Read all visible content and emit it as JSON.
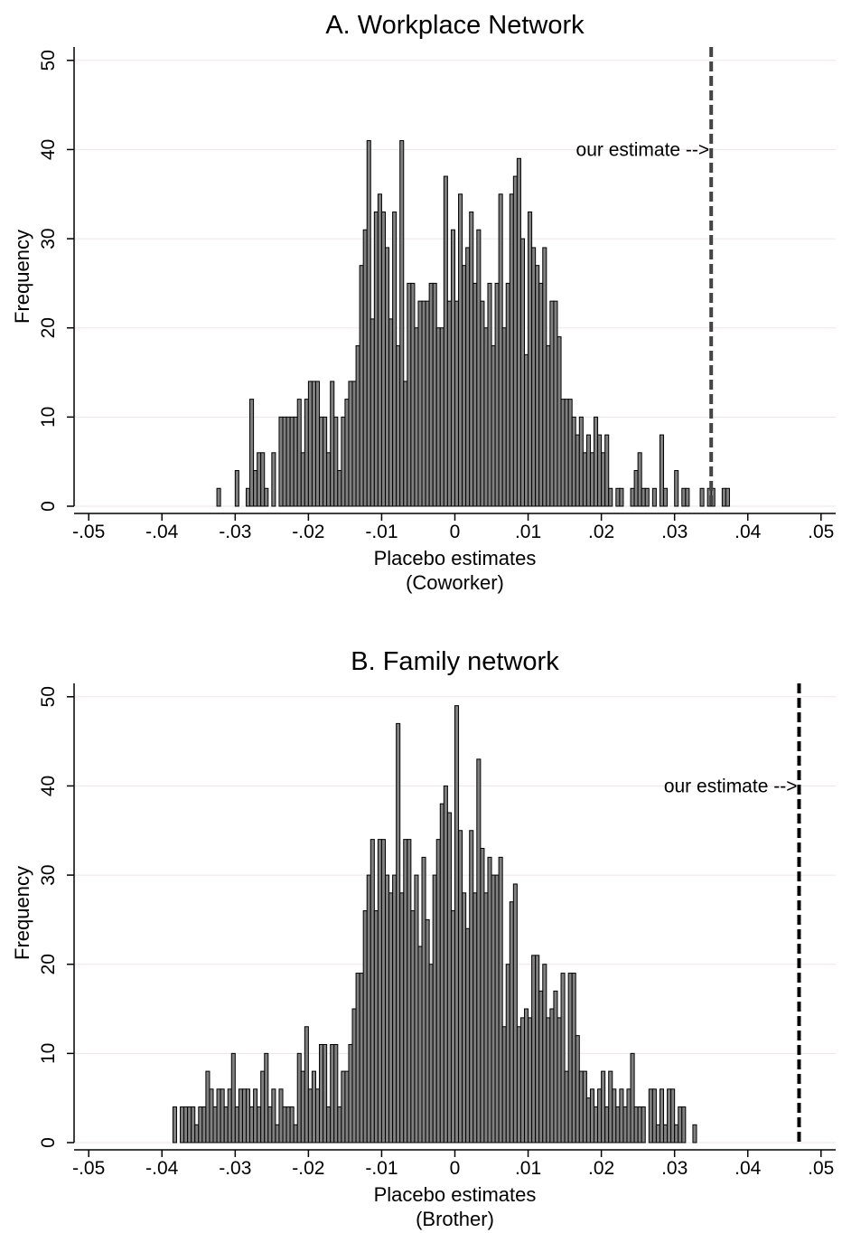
{
  "chart_data": [
    {
      "type": "histogram",
      "title": "A. Workplace Network",
      "x_label": "Placebo estimates",
      "x_sublabel": "(Coworker)",
      "y_label": "Frequency",
      "xlim": [
        -0.052,
        0.052
      ],
      "ylim": [
        0,
        51.5
      ],
      "xticks": [
        {
          "value": -0.05,
          "label": "-.05"
        },
        {
          "value": -0.04,
          "label": "-.04"
        },
        {
          "value": -0.03,
          "label": "-.03"
        },
        {
          "value": -0.02,
          "label": "-.02"
        },
        {
          "value": -0.01,
          "label": "-.01"
        },
        0,
        {
          "value": 0.01,
          "label": ".01"
        },
        {
          "value": 0.02,
          "label": ".02"
        },
        {
          "value": 0.03,
          "label": ".03"
        },
        {
          "value": 0.04,
          "label": ".04"
        },
        {
          "value": 0.05,
          "label": ".05"
        }
      ],
      "yticks": [
        0,
        10,
        20,
        30,
        40,
        50
      ],
      "grid": true,
      "color": "#808080",
      "edgecolor": "#000000",
      "bins": [
        -0.033,
        -0.0325,
        -0.032,
        -0.0315,
        -0.031,
        -0.0305,
        -0.03,
        -0.0295,
        -0.029,
        -0.0285,
        -0.028,
        -0.0275,
        -0.027,
        -0.0265,
        -0.026,
        -0.0255,
        -0.025,
        -0.0245,
        -0.024,
        -0.0235,
        -0.023,
        -0.0225,
        -0.022,
        -0.0215,
        -0.021,
        -0.0205,
        -0.02,
        -0.0195,
        -0.019,
        -0.0185,
        -0.018,
        -0.0175,
        -0.017,
        -0.0165,
        -0.016,
        -0.0155,
        -0.015,
        -0.0145,
        -0.014,
        -0.0135,
        -0.013,
        -0.0125,
        -0.012,
        -0.0115,
        -0.011,
        -0.0105,
        -0.01,
        -0.0095,
        -0.009,
        -0.0085,
        -0.008,
        -0.0075,
        -0.007,
        -0.0065,
        -0.006,
        -0.0055,
        -0.005,
        -0.0045,
        -0.004,
        -0.0035,
        -0.003,
        -0.0025,
        -0.002,
        -0.0015,
        -0.001,
        -0.0005,
        0,
        0.0005,
        0.001,
        0.0015,
        0.002,
        0.0025,
        0.003,
        0.0035,
        0.004,
        0.0045,
        0.005,
        0.0055,
        0.006,
        0.0065,
        0.007,
        0.0075,
        0.008,
        0.0085,
        0.009,
        0.0095,
        0.01,
        0.0105,
        0.011,
        0.0115,
        0.012,
        0.0125,
        0.013,
        0.0135,
        0.014,
        0.0145,
        0.015,
        0.0155,
        0.016,
        0.0165,
        0.017,
        0.0175,
        0.018,
        0.0185,
        0.019,
        0.0195,
        0.02,
        0.0205,
        0.021,
        0.0215,
        0.022,
        0.0225,
        0.023,
        0.0235,
        0.024,
        0.0245,
        0.025,
        0.0255,
        0.026,
        0.0265,
        0.027,
        0.0275,
        0.028,
        0.0285,
        0.029,
        0.0295,
        0.03,
        0.0305,
        0.031,
        0.0315,
        0.032,
        0.0325,
        0.033,
        0.0335,
        0.034,
        0.0345,
        0.035,
        0.0355,
        0.036,
        0.0365,
        0.037,
        0.0375,
        0.038
      ],
      "counts": [
        0,
        2,
        0,
        0,
        0,
        0,
        4,
        0,
        0,
        2,
        12,
        4,
        6,
        6,
        2,
        0,
        6,
        0,
        10,
        10,
        10,
        10,
        10,
        12,
        6,
        12,
        14,
        14,
        14,
        10,
        10,
        6,
        14,
        10,
        4,
        10,
        12,
        14,
        14,
        18,
        27,
        31,
        41,
        21,
        33,
        35,
        33,
        29,
        21,
        33,
        18,
        41,
        14,
        25,
        25,
        20,
        23,
        23,
        23,
        25,
        25,
        20,
        20,
        37,
        23,
        31,
        23,
        35,
        27,
        29,
        33,
        25,
        31,
        23,
        20,
        25,
        18,
        25,
        35,
        20,
        25,
        35,
        37,
        39,
        30,
        17,
        33,
        29,
        27,
        25,
        29,
        18,
        23,
        23,
        19,
        12,
        12,
        12,
        10,
        8,
        10,
        6,
        8,
        6,
        10,
        8,
        6,
        8,
        2,
        0,
        2,
        2,
        0,
        0,
        2,
        4,
        6,
        2,
        2,
        0,
        2,
        0,
        8,
        2,
        0,
        0,
        4,
        0,
        2,
        2,
        0,
        0,
        0,
        2,
        0,
        2,
        2,
        0,
        0,
        2,
        2,
        0
      ],
      "reference_line": {
        "x": 0.035,
        "color": "#444444"
      },
      "annotation": {
        "text": "our estimate -->",
        "x": 0.035,
        "y": 40
      }
    },
    {
      "type": "histogram",
      "title": "B. Family network",
      "x_label": "Placebo estimates",
      "x_sublabel": "(Brother)",
      "y_label": "Frequency",
      "xlim": [
        -0.052,
        0.052
      ],
      "ylim": [
        0,
        51.5
      ],
      "xticks": [
        {
          "value": -0.05,
          "label": "-.05"
        },
        {
          "value": -0.04,
          "label": "-.04"
        },
        {
          "value": -0.03,
          "label": "-.03"
        },
        {
          "value": -0.02,
          "label": "-.02"
        },
        {
          "value": -0.01,
          "label": "-.01"
        },
        0,
        {
          "value": 0.01,
          "label": ".01"
        },
        {
          "value": 0.02,
          "label": ".02"
        },
        {
          "value": 0.03,
          "label": ".03"
        },
        {
          "value": 0.04,
          "label": ".04"
        },
        {
          "value": 0.05,
          "label": ".05"
        }
      ],
      "yticks": [
        0,
        10,
        20,
        30,
        40,
        50
      ],
      "grid": true,
      "color": "#808080",
      "edgecolor": "#000000",
      "bins": [
        -0.039,
        -0.0385,
        -0.038,
        -0.0375,
        -0.037,
        -0.0365,
        -0.036,
        -0.0355,
        -0.035,
        -0.0345,
        -0.034,
        -0.0335,
        -0.033,
        -0.0325,
        -0.032,
        -0.0315,
        -0.031,
        -0.0305,
        -0.03,
        -0.0295,
        -0.029,
        -0.0285,
        -0.028,
        -0.0275,
        -0.027,
        -0.0265,
        -0.026,
        -0.0255,
        -0.025,
        -0.0245,
        -0.024,
        -0.0235,
        -0.023,
        -0.0225,
        -0.022,
        -0.0215,
        -0.021,
        -0.0205,
        -0.02,
        -0.0195,
        -0.019,
        -0.0185,
        -0.018,
        -0.0175,
        -0.017,
        -0.0165,
        -0.016,
        -0.0155,
        -0.015,
        -0.0145,
        -0.014,
        -0.0135,
        -0.013,
        -0.0125,
        -0.012,
        -0.0115,
        -0.011,
        -0.0105,
        -0.01,
        -0.0095,
        -0.009,
        -0.0085,
        -0.008,
        -0.0075,
        -0.007,
        -0.0065,
        -0.006,
        -0.0055,
        -0.005,
        -0.0045,
        -0.004,
        -0.0035,
        -0.003,
        -0.0025,
        -0.002,
        -0.0015,
        -0.001,
        -0.0005,
        0,
        0.0005,
        0.001,
        0.0015,
        0.002,
        0.0025,
        0.003,
        0.0035,
        0.004,
        0.0045,
        0.005,
        0.0055,
        0.006,
        0.0065,
        0.007,
        0.0075,
        0.008,
        0.0085,
        0.009,
        0.0095,
        0.01,
        0.0105,
        0.011,
        0.0115,
        0.012,
        0.0125,
        0.013,
        0.0135,
        0.014,
        0.0145,
        0.015,
        0.0155,
        0.016,
        0.0165,
        0.017,
        0.0175,
        0.018,
        0.0185,
        0.019,
        0.0195,
        0.02,
        0.0205,
        0.021,
        0.0215,
        0.022,
        0.0225,
        0.023,
        0.0235,
        0.024,
        0.0245,
        0.025,
        0.0255,
        0.026,
        0.0265,
        0.027,
        0.0275,
        0.028,
        0.0285,
        0.029,
        0.0295,
        0.03,
        0.0305,
        0.031,
        0.0315,
        0.032,
        0.0325,
        0.033
      ],
      "counts": [
        0,
        4,
        0,
        4,
        4,
        4,
        4,
        2,
        4,
        4,
        8,
        6,
        4,
        6,
        6,
        4,
        6,
        10,
        4,
        6,
        6,
        6,
        4,
        6,
        4,
        8,
        10,
        4,
        6,
        2,
        6,
        4,
        4,
        4,
        2,
        10,
        8,
        13,
        6,
        8,
        6,
        11,
        11,
        4,
        11,
        11,
        4,
        8,
        8,
        11,
        15,
        19,
        19,
        26,
        30,
        34,
        26,
        34,
        34,
        30,
        28,
        30,
        47,
        28,
        34,
        34,
        26,
        30,
        22,
        32,
        25,
        20,
        30,
        34,
        38,
        40,
        37,
        26,
        49,
        35,
        28,
        24,
        35,
        28,
        43,
        33,
        28,
        32,
        30,
        30,
        32,
        13,
        20,
        27,
        29,
        13,
        14,
        15,
        14,
        21,
        21,
        17,
        20,
        14,
        15,
        17,
        14,
        19,
        8,
        19,
        19,
        12,
        8,
        8,
        5,
        6,
        4,
        6,
        8,
        4,
        8,
        6,
        4,
        6,
        4,
        6,
        10,
        4,
        4,
        4,
        0,
        6,
        6,
        2,
        6,
        2,
        6,
        6,
        2,
        4,
        4,
        0,
        0,
        2
      ],
      "reference_line": {
        "x": 0.047,
        "color": "#000000"
      },
      "annotation": {
        "text": "our estimate -->",
        "x": 0.047,
        "y": 40
      }
    }
  ]
}
